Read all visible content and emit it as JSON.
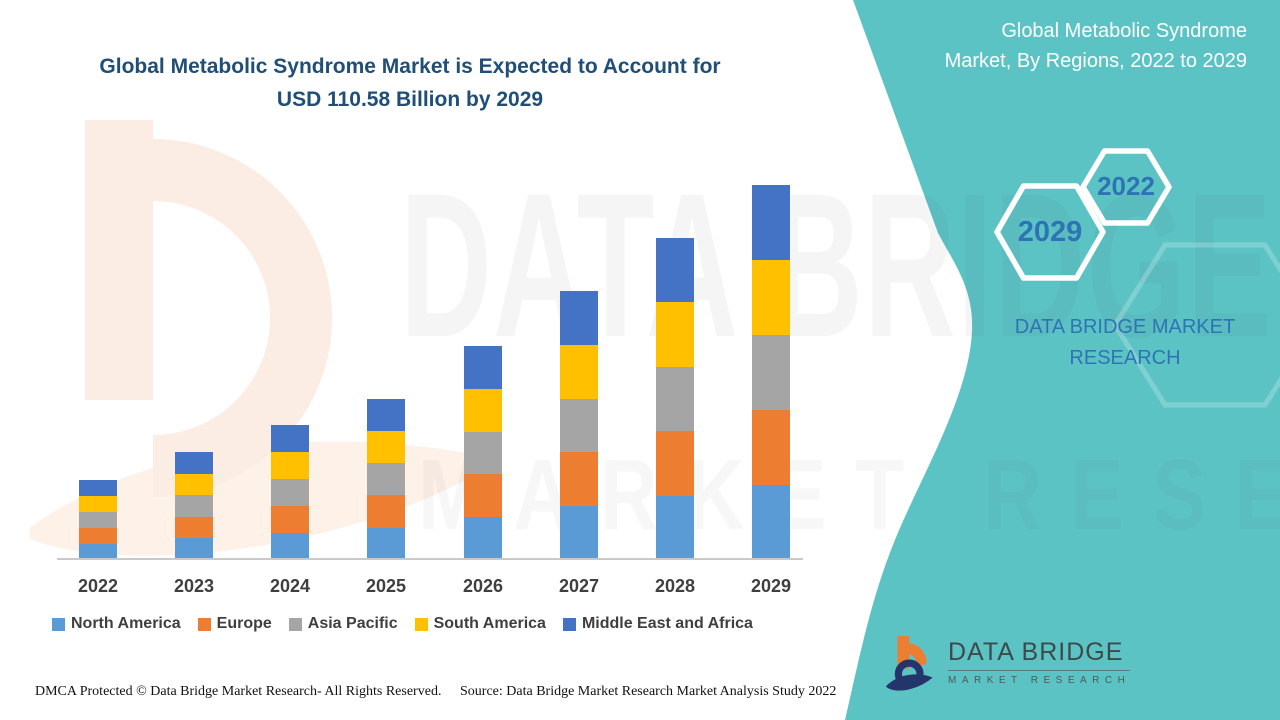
{
  "title": {
    "line1": "Global Metabolic Syndrome Market is Expected to Account for",
    "line2": "USD 110.58 Billion by 2029",
    "color": "#1F4E79"
  },
  "side_panel": {
    "bg_color": "#5CC3C5",
    "heading": "Global Metabolic Syndrome Market, By Regions, 2022 to 2029",
    "hex_small_label": "2022",
    "hex_large_label": "2029",
    "brand_text": "DATA BRIDGE MARKET RESEARCH",
    "brand_color": "#2E74B5"
  },
  "chart_data": {
    "type": "bar",
    "stacked": true,
    "units": "USD Billion",
    "categories": [
      "2022",
      "2023",
      "2024",
      "2025",
      "2026",
      "2027",
      "2028",
      "2029"
    ],
    "series": [
      {
        "name": "North America",
        "color": "#5B9BD5",
        "values": [
          4.72,
          6.38,
          7.96,
          9.54,
          12.64,
          15.88,
          19.02,
          22.12
        ]
      },
      {
        "name": "Europe",
        "color": "#ED7D31",
        "values": [
          4.72,
          6.38,
          7.96,
          9.54,
          12.64,
          15.88,
          19.02,
          22.12
        ]
      },
      {
        "name": "Asia Pacific",
        "color": "#A5A5A5",
        "values": [
          4.72,
          6.38,
          7.96,
          9.54,
          12.64,
          15.88,
          19.02,
          22.12
        ]
      },
      {
        "name": "South America",
        "color": "#FFC000",
        "values": [
          4.72,
          6.38,
          7.96,
          9.54,
          12.64,
          15.88,
          19.02,
          22.12
        ]
      },
      {
        "name": "Middle East and Africa",
        "color": "#4472C4",
        "values": [
          4.72,
          6.38,
          7.96,
          9.54,
          12.64,
          15.88,
          19.02,
          22.12
        ]
      }
    ],
    "totals": [
      23.6,
      31.9,
      39.8,
      47.7,
      63.2,
      79.4,
      95.1,
      110.58
    ],
    "xlabel": "",
    "ylabel": "",
    "ylim": [
      0,
      115
    ],
    "grid": false,
    "legend_position": "bottom"
  },
  "watermarks": {
    "line1": "DATA BRIDGE",
    "line2": "MARKET RESEARCH"
  },
  "logo": {
    "name": "DATA BRIDGE",
    "sub": "MARKET RESEARCH"
  },
  "footer": {
    "left": "DMCA Protected © Data Bridge Market Research- All Rights Reserved.",
    "right": "Source: Data Bridge Market Research Market Analysis Study 2022"
  }
}
